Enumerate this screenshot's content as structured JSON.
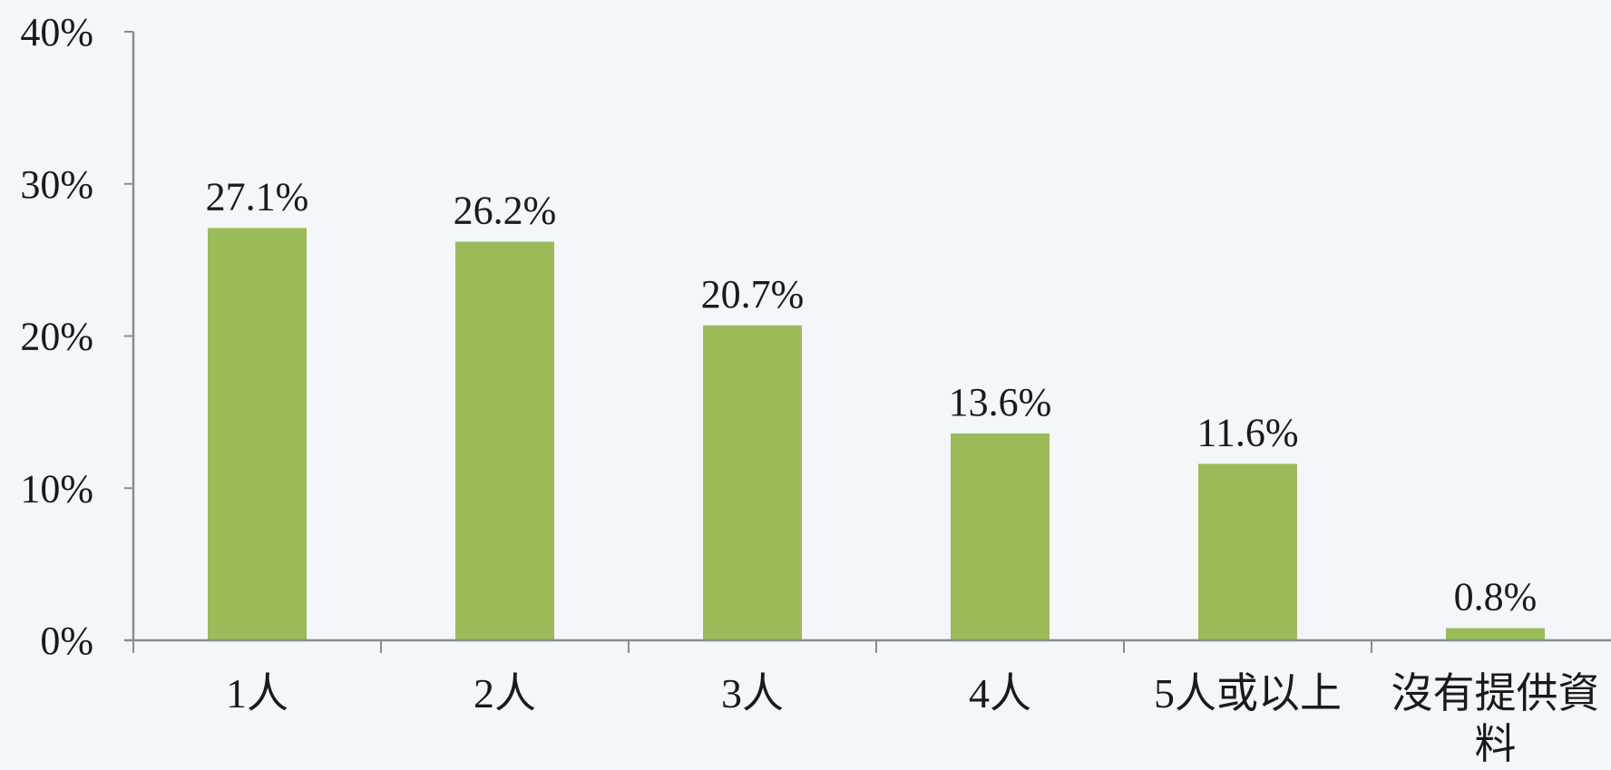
{
  "chart_data": {
    "type": "bar",
    "title": "",
    "xlabel": "",
    "ylabel": "",
    "categories": [
      "1人",
      "2人",
      "3人",
      "4人",
      "5人或以上",
      "沒有提供資料"
    ],
    "category_lines": [
      [
        "1人"
      ],
      [
        "2人"
      ],
      [
        "3人"
      ],
      [
        "4人"
      ],
      [
        "5人或以上"
      ],
      [
        "沒有提供資",
        "料"
      ]
    ],
    "values": [
      27.1,
      26.2,
      20.7,
      13.6,
      11.6,
      0.8
    ],
    "data_labels": [
      "27.1%",
      "26.2%",
      "20.7%",
      "13.6%",
      "11.6%",
      "0.8%"
    ],
    "ylim": [
      0,
      40
    ],
    "yticks": [
      0,
      10,
      20,
      30,
      40
    ],
    "ytick_labels": [
      "0%",
      "10%",
      "20%",
      "30%",
      "40%"
    ],
    "grid": false,
    "legend": "none",
    "bar_color": "#9bbb59",
    "axis_color": "#8c8c8c",
    "background": "#f3f6fa"
  }
}
